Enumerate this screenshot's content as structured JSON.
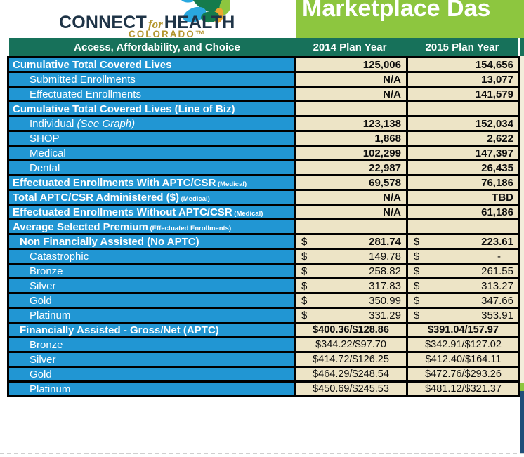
{
  "colors": {
    "teal": "#17715A",
    "blue": "#2196D3",
    "beige": "#EDE4C6",
    "green": "#8DC63F",
    "navytext": "#1F3447",
    "gold": "#B3962E",
    "ink": "#0D0D0D",
    "slivernavy": "#1F4E79",
    "leafdark": "#157B4C",
    "leafblue": "#29A8DF",
    "leafgold": "#EDA62F"
  },
  "logo": {
    "connect": "CONNECT",
    "for": "for",
    "health": "HEALTH",
    "colorado": "COLORADO™"
  },
  "banner": {
    "title_visible": "Marketplace Das"
  },
  "table": {
    "currency": "$",
    "headers": [
      "Access, Affordability, and Choice",
      "2014 Plan Year",
      "2015 Plan Year"
    ],
    "rows": [
      {
        "label": "Cumulative Total Covered Lives",
        "indent": 0,
        "bold": true,
        "style": "num",
        "y2014": "125,006",
        "y2015": "154,656"
      },
      {
        "label": "Submitted Enrollments",
        "indent": 2,
        "bold": false,
        "style": "num",
        "y2014": "N/A",
        "y2015": "13,077"
      },
      {
        "label": "Effectuated Enrollments",
        "indent": 2,
        "bold": false,
        "style": "num",
        "y2014": "N/A",
        "y2015": "141,579"
      },
      {
        "label": "Cumulative Total Covered Lives (Line of Biz)",
        "indent": 0,
        "bold": true,
        "style": "empty",
        "y2014": "",
        "y2015": ""
      },
      {
        "label": "Individual",
        "italicNote": "(See Graph)",
        "indent": 2,
        "bold": false,
        "style": "num",
        "y2014": "123,138",
        "y2015": "152,034"
      },
      {
        "label": "SHOP",
        "indent": 2,
        "bold": false,
        "style": "num",
        "y2014": "1,868",
        "y2015": "2,622"
      },
      {
        "label": "Medical",
        "indent": 2,
        "bold": false,
        "style": "num",
        "y2014": "102,299",
        "y2015": "147,397"
      },
      {
        "label": "Dental",
        "indent": 2,
        "bold": false,
        "style": "num",
        "y2014": "22,987",
        "y2015": "26,435"
      },
      {
        "label": "Effectuated Enrollments With APTC/CSR",
        "note": "(Medical)",
        "indent": 0,
        "bold": true,
        "style": "num",
        "y2014": "69,578",
        "y2015": "76,186"
      },
      {
        "label": "Total APTC/CSR Administered ($)",
        "note": "(Medical)",
        "indent": 0,
        "bold": true,
        "style": "num",
        "y2014": "N/A",
        "y2015": "TBD"
      },
      {
        "label": "Effectuated Enrollments Without APTC/CSR",
        "note": "(Medical)",
        "indent": 0,
        "bold": true,
        "style": "num",
        "y2014": "N/A",
        "y2015": "61,186"
      },
      {
        "label": "Average Selected Premium",
        "note": "(Effectuated Enrollments)",
        "indent": 0,
        "bold": true,
        "style": "empty",
        "y2014": "",
        "y2015": ""
      },
      {
        "label": "Non Financially Assisted (No APTC)",
        "indent": 1,
        "bold": true,
        "style": "acct",
        "valueBold": true,
        "y2014": "281.74",
        "y2015": "223.61"
      },
      {
        "label": "Catastrophic",
        "indent": 2,
        "bold": false,
        "style": "acct",
        "y2014": "149.78",
        "y2015": "-"
      },
      {
        "label": "Bronze",
        "indent": 2,
        "bold": false,
        "style": "acct",
        "y2014": "258.82",
        "y2015": "261.55"
      },
      {
        "label": "Silver",
        "indent": 2,
        "bold": false,
        "style": "acct",
        "y2014": "317.83",
        "y2015": "313.27"
      },
      {
        "label": "Gold",
        "indent": 2,
        "bold": false,
        "style": "acct",
        "y2014": "350.99",
        "y2015": "347.66"
      },
      {
        "label": "Platinum",
        "indent": 2,
        "bold": false,
        "style": "acct",
        "y2014": "331.29",
        "y2015": "353.91"
      },
      {
        "label": "Financially Assisted - Gross/Net (APTC)",
        "indent": 1,
        "bold": true,
        "style": "center",
        "valueBold": true,
        "y2014": "$400.36/$128.86",
        "y2015": "$391.04/157.97"
      },
      {
        "label": "Bronze",
        "indent": 2,
        "bold": false,
        "style": "center",
        "y2014": "$344.22/$97.70",
        "y2015": "$342.91/$127.02"
      },
      {
        "label": "Silver",
        "indent": 2,
        "bold": false,
        "style": "center",
        "y2014": "$414.72/$126.25",
        "y2015": "$412.40/$164.11"
      },
      {
        "label": "Gold",
        "indent": 2,
        "bold": false,
        "style": "center",
        "y2014": "$464.29/$248.54",
        "y2015": "$472.76/$293.26"
      },
      {
        "label": "Platinum",
        "indent": 2,
        "bold": false,
        "style": "center",
        "y2014": "$450.69/$245.53",
        "y2015": "$481.12/$321.37"
      }
    ]
  }
}
